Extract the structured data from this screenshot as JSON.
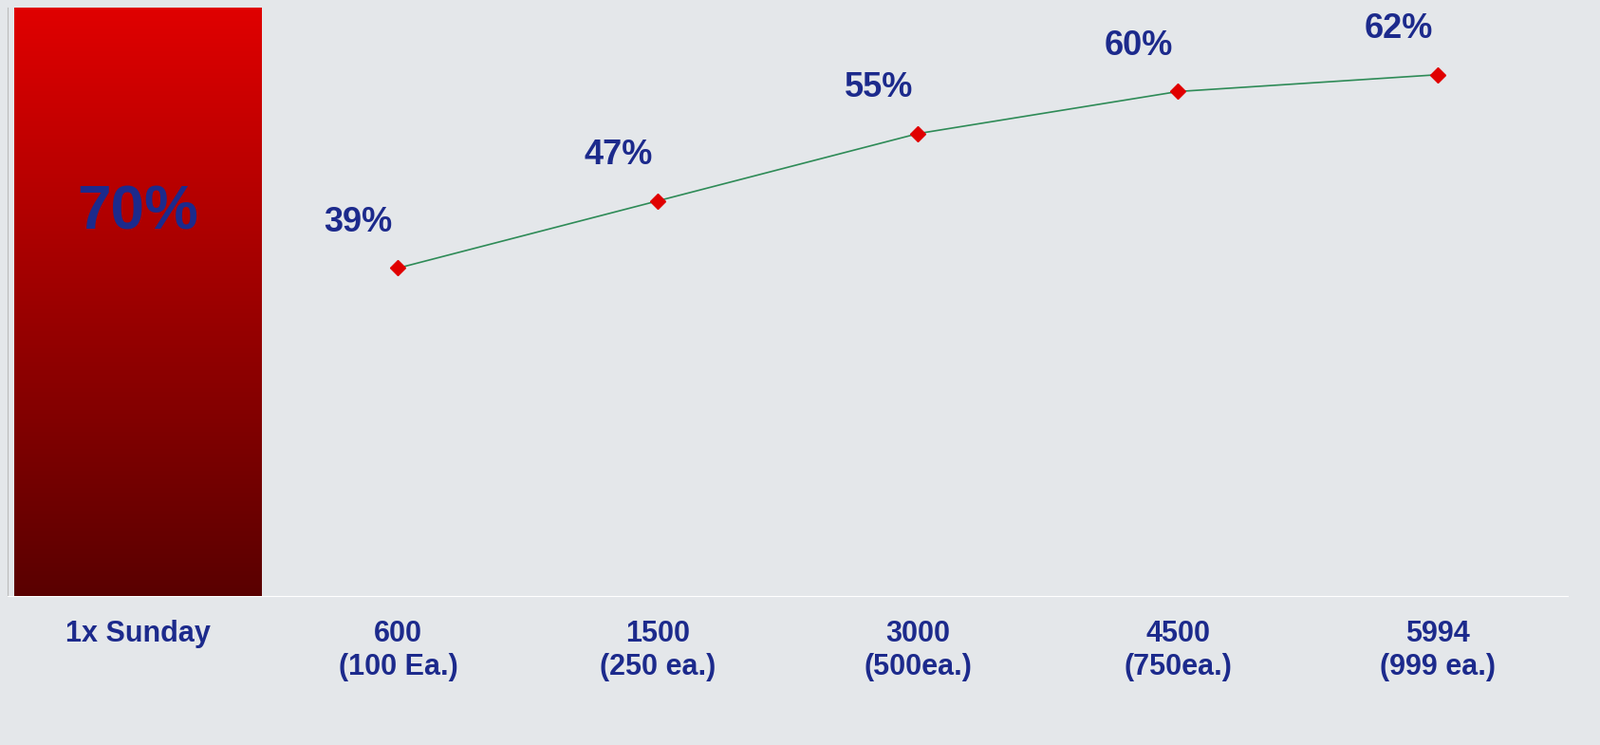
{
  "chart_data": {
    "type": "combo",
    "categories": [
      "1x Sunday",
      "600\n(100 Ea.)",
      "1500\n(250 ea.)",
      "3000\n(500ea.)",
      "4500\n(750ea.)",
      "5994\n(999 ea.)"
    ],
    "series": [
      {
        "type": "bar",
        "color": "#e00000",
        "values": [
          70,
          null,
          null,
          null,
          null,
          null
        ],
        "value_labels": [
          "70%",
          null,
          null,
          null,
          null,
          null
        ]
      },
      {
        "type": "line",
        "color": "#2e8b57",
        "marker": "diamond",
        "line_style": "solid",
        "values": [
          null,
          39,
          47,
          55,
          60,
          62
        ],
        "value_labels": [
          null,
          "39%",
          "47%",
          "55%",
          "60%",
          "62%"
        ]
      }
    ],
    "ylim": [
      0,
      70
    ],
    "data_labels": true,
    "tick_labels": "x",
    "grid": false
  }
}
